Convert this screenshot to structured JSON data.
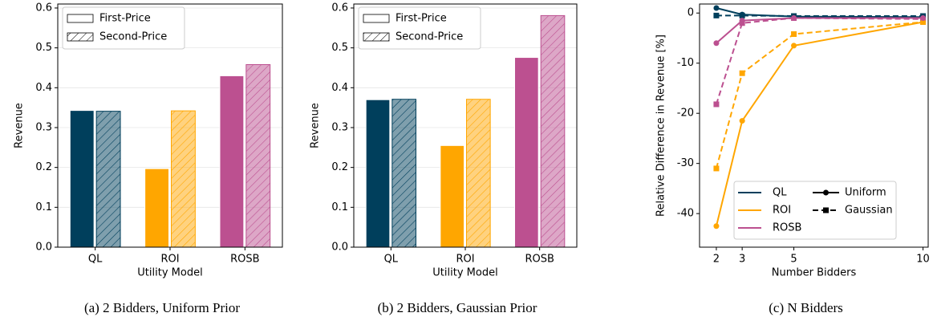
{
  "chart_data": [
    {
      "type": "bar",
      "caption": "(a) 2 Bidders, Uniform Prior",
      "xlabel": "Utility Model",
      "ylabel": "Revenue",
      "categories": [
        "QL",
        "ROI",
        "ROSB"
      ],
      "colors": [
        "#003f5c",
        "#ffa600",
        "#bc5090"
      ],
      "series": [
        {
          "name": "First-Price",
          "hatch": false,
          "values": [
            0.343,
            0.197,
            0.43
          ]
        },
        {
          "name": "Second-Price",
          "hatch": true,
          "values": [
            0.341,
            0.342,
            0.458
          ]
        }
      ],
      "ylim": [
        0,
        0.61
      ],
      "yticks": [
        {
          "value": 0,
          "label": "0.0"
        },
        0.1,
        0.2,
        0.3,
        0.4,
        0.5,
        0.6
      ],
      "grid": true,
      "legend": "upper left"
    },
    {
      "type": "bar",
      "caption": "(b) 2 Bidders, Gaussian Prior",
      "xlabel": "Utility Model",
      "ylabel": "Revenue",
      "categories": [
        "QL",
        "ROI",
        "ROSB"
      ],
      "colors": [
        "#003f5c",
        "#ffa600",
        "#bc5090"
      ],
      "series": [
        {
          "name": "First-Price",
          "hatch": false,
          "values": [
            0.37,
            0.255,
            0.476
          ]
        },
        {
          "name": "Second-Price",
          "hatch": true,
          "values": [
            0.371,
            0.371,
            0.581
          ]
        }
      ],
      "ylim": [
        0,
        0.61
      ],
      "yticks": [
        {
          "value": 0,
          "label": "0.0"
        },
        0.1,
        0.2,
        0.3,
        0.4,
        0.5,
        0.6
      ],
      "grid": true,
      "legend": "upper left"
    },
    {
      "type": "line",
      "caption": "(c) N Bidders",
      "xlabel": "Number Bidders",
      "ylabel": "Relative Difference in Revenue [%]",
      "x": [
        2,
        3,
        5,
        10
      ],
      "xlim": [
        1.35,
        10.2
      ],
      "xticks": [
        2,
        3,
        5,
        10
      ],
      "ylim": [
        -46.7,
        1.8
      ],
      "yticks": [
        0,
        -10,
        -20,
        -30,
        -40
      ],
      "grid": false,
      "legend": "lower right",
      "styles": [
        {
          "name": "Uniform",
          "dashed": false,
          "marker": "circle"
        },
        {
          "name": "Gaussian",
          "dashed": true,
          "marker": "square"
        }
      ],
      "series": [
        {
          "name": "QL",
          "color": "#003f5c",
          "lines": [
            [
              1.0,
              -0.3,
              -0.7,
              -0.8
            ],
            [
              -0.5,
              -0.5,
              -0.6,
              -0.6
            ]
          ]
        },
        {
          "name": "ROI",
          "color": "#ffa600",
          "lines": [
            [
              -42.5,
              -21.5,
              -6.5,
              -1.8
            ],
            [
              -31,
              -12,
              -4.2,
              -1.8
            ]
          ]
        },
        {
          "name": "ROSB",
          "color": "#bc5090",
          "lines": [
            [
              -6,
              -1.5,
              -1,
              -1
            ],
            [
              -18.2,
              -2,
              -1,
              -1.2
            ]
          ]
        }
      ]
    }
  ]
}
